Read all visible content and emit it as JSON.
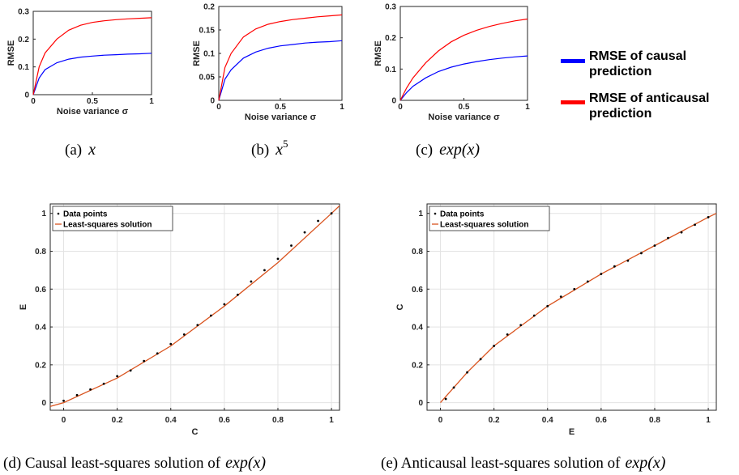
{
  "legend_top": {
    "entries": [
      {
        "label_line1": "RMSE of causal",
        "label_line2": "prediction",
        "color": "#0000ff"
      },
      {
        "label_line1": "RMSE of anticausal",
        "label_line2": "prediction",
        "color": "#ff0000"
      }
    ]
  },
  "captions": {
    "a": {
      "prefix": "(a)",
      "math": "x",
      "sup": ""
    },
    "b": {
      "prefix": "(b)",
      "math": "x",
      "sup": "5"
    },
    "c": {
      "prefix": "(c)",
      "math": "exp(x)",
      "sup": ""
    },
    "d": {
      "text": "(d) Causal least-squares solution of",
      "math": "exp(x)"
    },
    "e": {
      "text": "(e) Anticausal least-squares solution of",
      "math": "exp(x)"
    }
  },
  "chart_data": [
    {
      "id": "a",
      "type": "line",
      "xlabel": "Noise variance σ",
      "ylabel": "RMSE",
      "xlim": [
        0,
        1
      ],
      "ylim": [
        0,
        0.3
      ],
      "xticks": [
        "0",
        "0.5",
        "1"
      ],
      "yticks": [
        "0",
        "0.1",
        "0.2",
        "0.3"
      ],
      "grid": false,
      "x": [
        0,
        0.05,
        0.1,
        0.2,
        0.3,
        0.4,
        0.5,
        0.6,
        0.7,
        0.8,
        0.9,
        1.0
      ],
      "series": [
        {
          "name": "RMSE of causal prediction",
          "color": "#0000ff",
          "values": [
            0,
            0.06,
            0.09,
            0.115,
            0.128,
            0.135,
            0.139,
            0.142,
            0.144,
            0.146,
            0.147,
            0.149
          ]
        },
        {
          "name": "RMSE of anticausal prediction",
          "color": "#ff0000",
          "values": [
            0,
            0.1,
            0.15,
            0.2,
            0.232,
            0.25,
            0.26,
            0.266,
            0.27,
            0.273,
            0.275,
            0.277
          ]
        }
      ]
    },
    {
      "id": "b",
      "type": "line",
      "xlabel": "Noise variance σ",
      "ylabel": "RMSE",
      "xlim": [
        0,
        1
      ],
      "ylim": [
        0,
        0.2
      ],
      "xticks": [
        "0",
        "0.5",
        "1"
      ],
      "yticks": [
        "0",
        "0.05",
        "0.1",
        "0.15",
        "0.2"
      ],
      "grid": false,
      "x": [
        0,
        0.05,
        0.1,
        0.2,
        0.3,
        0.4,
        0.5,
        0.6,
        0.7,
        0.8,
        0.9,
        1.0
      ],
      "series": [
        {
          "name": "RMSE of causal prediction",
          "color": "#0000ff",
          "values": [
            0,
            0.045,
            0.065,
            0.09,
            0.103,
            0.111,
            0.116,
            0.119,
            0.122,
            0.124,
            0.125,
            0.127
          ]
        },
        {
          "name": "RMSE of anticausal prediction",
          "color": "#ff0000",
          "values": [
            0,
            0.07,
            0.1,
            0.135,
            0.152,
            0.162,
            0.168,
            0.172,
            0.175,
            0.178,
            0.18,
            0.182
          ]
        }
      ]
    },
    {
      "id": "c",
      "type": "line",
      "xlabel": "Noise variance σ",
      "ylabel": "RMSE",
      "xlim": [
        0,
        1
      ],
      "ylim": [
        0,
        0.3
      ],
      "xticks": [
        "0",
        "0.5",
        "1"
      ],
      "yticks": [
        "0",
        "0.1",
        "0.2",
        "0.3"
      ],
      "grid": false,
      "x": [
        0,
        0.05,
        0.1,
        0.2,
        0.3,
        0.4,
        0.5,
        0.6,
        0.7,
        0.8,
        0.9,
        1.0
      ],
      "series": [
        {
          "name": "RMSE of causal prediction",
          "color": "#0000ff",
          "values": [
            0,
            0.025,
            0.045,
            0.072,
            0.092,
            0.106,
            0.116,
            0.124,
            0.13,
            0.135,
            0.139,
            0.142
          ]
        },
        {
          "name": "RMSE of anticausal prediction",
          "color": "#ff0000",
          "values": [
            0,
            0.04,
            0.072,
            0.12,
            0.158,
            0.187,
            0.208,
            0.224,
            0.236,
            0.246,
            0.254,
            0.26
          ]
        }
      ]
    },
    {
      "id": "d",
      "type": "scatter",
      "xlabel": "C",
      "ylabel": "E",
      "xlim": [
        -0.05,
        1.03
      ],
      "ylim": [
        -0.04,
        1.05
      ],
      "xticks": [
        "0",
        "0.2",
        "0.4",
        "0.6",
        "0.8",
        "1"
      ],
      "yticks": [
        "0",
        "0.2",
        "0.4",
        "0.6",
        "0.8",
        "1"
      ],
      "grid": true,
      "legend": [
        "Data points",
        "Least-squares solution"
      ],
      "legend_position": "top-left",
      "points_x": [
        0,
        0.05,
        0.1,
        0.15,
        0.2,
        0.25,
        0.3,
        0.35,
        0.4,
        0.45,
        0.5,
        0.55,
        0.6,
        0.65,
        0.7,
        0.75,
        0.8,
        0.85,
        0.9,
        0.95,
        1.0
      ],
      "points_y": [
        0.01,
        0.04,
        0.07,
        0.1,
        0.14,
        0.17,
        0.22,
        0.26,
        0.31,
        0.36,
        0.41,
        0.46,
        0.52,
        0.57,
        0.64,
        0.7,
        0.76,
        0.83,
        0.9,
        0.96,
        1.0
      ],
      "fit_line": {
        "x": [
          -0.05,
          0,
          0.2,
          0.4,
          0.6,
          0.8,
          1.0,
          1.03
        ],
        "y": [
          -0.02,
          0.0,
          0.13,
          0.3,
          0.51,
          0.74,
          1.0,
          1.04
        ]
      }
    },
    {
      "id": "e",
      "type": "scatter",
      "xlabel": "E",
      "ylabel": "C",
      "xlim": [
        -0.05,
        1.03
      ],
      "ylim": [
        -0.04,
        1.05
      ],
      "xticks": [
        "0",
        "0.2",
        "0.4",
        "0.6",
        "0.8",
        "1"
      ],
      "yticks": [
        "0",
        "0.2",
        "0.4",
        "0.6",
        "0.8",
        "1"
      ],
      "grid": true,
      "legend": [
        "Data points",
        "Least-squares solution"
      ],
      "legend_position": "top-left",
      "points_x": [
        0.02,
        0.05,
        0.1,
        0.15,
        0.2,
        0.25,
        0.3,
        0.35,
        0.4,
        0.45,
        0.5,
        0.55,
        0.6,
        0.65,
        0.7,
        0.75,
        0.8,
        0.85,
        0.9,
        0.95,
        1.0
      ],
      "points_y": [
        0.02,
        0.08,
        0.16,
        0.23,
        0.3,
        0.36,
        0.41,
        0.46,
        0.51,
        0.56,
        0.6,
        0.64,
        0.68,
        0.72,
        0.75,
        0.79,
        0.83,
        0.87,
        0.9,
        0.94,
        0.98
      ],
      "fit_line": {
        "x": [
          0.0,
          0.1,
          0.2,
          0.4,
          0.6,
          0.8,
          1.0,
          1.03
        ],
        "y": [
          0.0,
          0.16,
          0.3,
          0.51,
          0.68,
          0.83,
          0.98,
          1.0
        ]
      }
    }
  ]
}
